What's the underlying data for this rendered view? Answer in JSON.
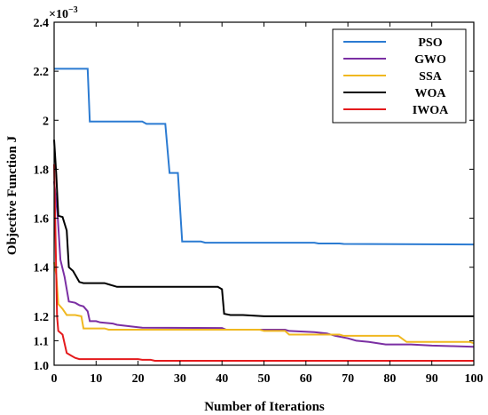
{
  "chart_data": {
    "type": "line",
    "xlabel": "Number of Iterations",
    "ylabel": "Objective Function J",
    "multiplier_label": "×10",
    "multiplier_exp": "−3",
    "xlim": [
      0,
      100
    ],
    "ylim": [
      1.0,
      2.4
    ],
    "xticks": [
      0,
      10,
      20,
      30,
      40,
      50,
      60,
      70,
      80,
      90,
      100
    ],
    "yticks": [
      1.0,
      1.1,
      1.2,
      1.4,
      1.6,
      1.8,
      2.0,
      2.2,
      2.4
    ],
    "ytick_labels": [
      "1.0",
      "1.1",
      "1.2",
      "1.4",
      "1.6",
      "1.8",
      "2",
      "2.2",
      "2.4"
    ],
    "yscale_points": [
      [
        1.0,
        1.0
      ],
      [
        1.1,
        1.1
      ],
      [
        1.2,
        1.2
      ],
      [
        1.4,
        1.4
      ],
      [
        1.6,
        1.6
      ],
      [
        1.8,
        1.8
      ],
      [
        2.0,
        2.0
      ],
      [
        2.2,
        2.2
      ],
      [
        2.4,
        2.4
      ]
    ],
    "legend_position": "top-right",
    "grid": false,
    "series": [
      {
        "name": "PSO",
        "color": "#2b7bd2",
        "points": [
          [
            0,
            2.21
          ],
          [
            8,
            2.21
          ],
          [
            8.5,
            1.995
          ],
          [
            21,
            1.995
          ],
          [
            22,
            1.985
          ],
          [
            26.5,
            1.985
          ],
          [
            27.5,
            1.785
          ],
          [
            29.5,
            1.785
          ],
          [
            30.5,
            1.505
          ],
          [
            35,
            1.505
          ],
          [
            36,
            1.5
          ],
          [
            62,
            1.5
          ],
          [
            63,
            1.497
          ],
          [
            68,
            1.497
          ],
          [
            69,
            1.495
          ],
          [
            100,
            1.493
          ]
        ]
      },
      {
        "name": "GWO",
        "color": "#7b2fa3",
        "points": [
          [
            0,
            1.75
          ],
          [
            0.8,
            1.62
          ],
          [
            1.5,
            1.43
          ],
          [
            2.5,
            1.36
          ],
          [
            3.5,
            1.26
          ],
          [
            5,
            1.255
          ],
          [
            6,
            1.245
          ],
          [
            7,
            1.24
          ],
          [
            8,
            1.22
          ],
          [
            8.5,
            1.18
          ],
          [
            10,
            1.18
          ],
          [
            11,
            1.175
          ],
          [
            14,
            1.17
          ],
          [
            15,
            1.165
          ],
          [
            20,
            1.155
          ],
          [
            21,
            1.153
          ],
          [
            40,
            1.152
          ],
          [
            41,
            1.145
          ],
          [
            55,
            1.145
          ],
          [
            56,
            1.14
          ],
          [
            62,
            1.135
          ],
          [
            65,
            1.13
          ],
          [
            67,
            1.12
          ],
          [
            70,
            1.11
          ],
          [
            72,
            1.1
          ],
          [
            75,
            1.095
          ],
          [
            79,
            1.085
          ],
          [
            85,
            1.085
          ],
          [
            90,
            1.08
          ],
          [
            95,
            1.078
          ],
          [
            100,
            1.075
          ]
        ]
      },
      {
        "name": "SSA",
        "color": "#f0b820",
        "points": [
          [
            0,
            1.42
          ],
          [
            0.5,
            1.37
          ],
          [
            1,
            1.25
          ],
          [
            2,
            1.23
          ],
          [
            3,
            1.205
          ],
          [
            5,
            1.205
          ],
          [
            6.5,
            1.2
          ],
          [
            7,
            1.15
          ],
          [
            12,
            1.15
          ],
          [
            13,
            1.145
          ],
          [
            49,
            1.145
          ],
          [
            50,
            1.14
          ],
          [
            55,
            1.14
          ],
          [
            56,
            1.125
          ],
          [
            68,
            1.125
          ],
          [
            69,
            1.12
          ],
          [
            82,
            1.12
          ],
          [
            84,
            1.095
          ],
          [
            99,
            1.095
          ],
          [
            100,
            1.09
          ]
        ]
      },
      {
        "name": "WOA",
        "color": "#000000",
        "points": [
          [
            0,
            1.92
          ],
          [
            0.5,
            1.78
          ],
          [
            1,
            1.61
          ],
          [
            2,
            1.605
          ],
          [
            3,
            1.55
          ],
          [
            3.5,
            1.4
          ],
          [
            4.5,
            1.385
          ],
          [
            6,
            1.34
          ],
          [
            7,
            1.335
          ],
          [
            12,
            1.335
          ],
          [
            13,
            1.33
          ],
          [
            15,
            1.32
          ],
          [
            39,
            1.32
          ],
          [
            40,
            1.31
          ],
          [
            40.5,
            1.21
          ],
          [
            42,
            1.205
          ],
          [
            45,
            1.205
          ],
          [
            50,
            1.2
          ],
          [
            100,
            1.2
          ]
        ]
      },
      {
        "name": "IWOA",
        "color": "#e41a1c",
        "points": [
          [
            0,
            1.82
          ],
          [
            0.7,
            1.2
          ],
          [
            1,
            1.14
          ],
          [
            2,
            1.125
          ],
          [
            3,
            1.05
          ],
          [
            4,
            1.04
          ],
          [
            5,
            1.03
          ],
          [
            6,
            1.025
          ],
          [
            20,
            1.025
          ],
          [
            21,
            1.022
          ],
          [
            23,
            1.022
          ],
          [
            24,
            1.018
          ],
          [
            100,
            1.018
          ]
        ]
      }
    ]
  }
}
